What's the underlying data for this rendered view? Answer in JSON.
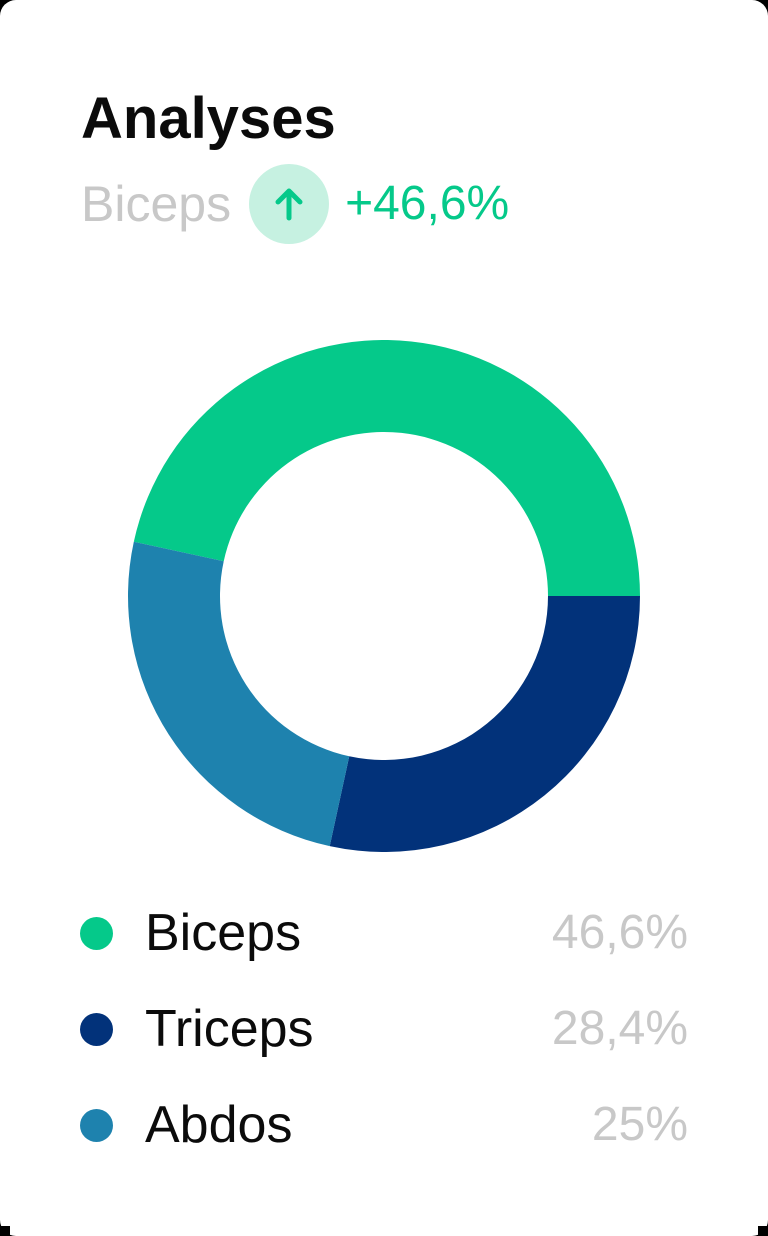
{
  "card": {
    "title": "Analyses",
    "trend": {
      "label": "Biceps",
      "icon": "arrow-up-icon",
      "value": "+46,6%",
      "color": "#05c98a"
    }
  },
  "chart_data": {
    "type": "pie",
    "donut": true,
    "title": "",
    "slices": [
      {
        "label": "Biceps",
        "value": 46.6,
        "display": "46,6%",
        "color": "#05c98a"
      },
      {
        "label": "Triceps",
        "value": 28.4,
        "display": "28,4%",
        "color": "#02327a"
      },
      {
        "label": "Abdos",
        "value": 25,
        "display": "25%",
        "color": "#1e82ae"
      }
    ],
    "legend": "bottom"
  }
}
